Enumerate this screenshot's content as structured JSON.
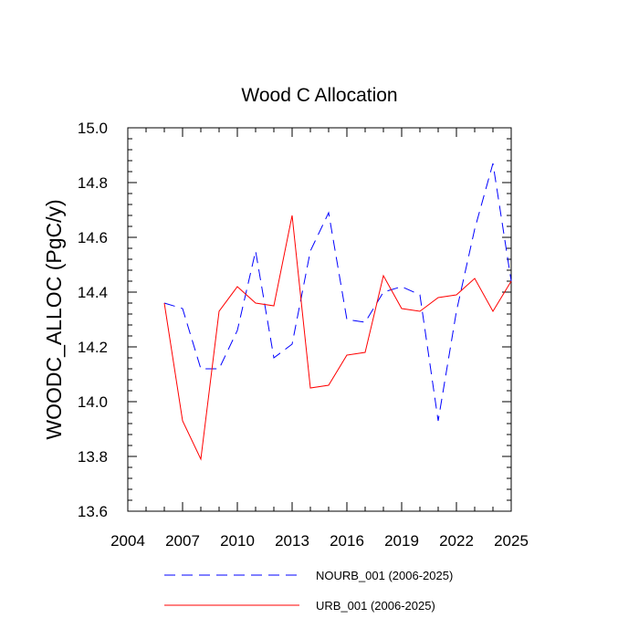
{
  "chart_data": {
    "type": "line",
    "title": "Wood C Allocation",
    "xlabel": "",
    "ylabel": "WOODC_ALLOC  (PgC/y)",
    "xlim": [
      2004,
      2025
    ],
    "ylim": [
      13.6,
      15.0
    ],
    "xticks": [
      2004,
      2007,
      2010,
      2013,
      2016,
      2019,
      2022,
      2025
    ],
    "yticks": [
      13.6,
      13.8,
      14.0,
      14.2,
      14.4,
      14.6,
      14.8,
      15.0
    ],
    "x": [
      2006,
      2007,
      2008,
      2009,
      2010,
      2011,
      2012,
      2013,
      2014,
      2015,
      2016,
      2017,
      2018,
      2019,
      2020,
      2021,
      2022,
      2023,
      2024,
      2025
    ],
    "series": [
      {
        "name": "NOURB_001 (2006-2025)",
        "color": "#0000ff",
        "dash": "dashed",
        "values": [
          14.36,
          14.34,
          14.12,
          14.12,
          14.26,
          14.55,
          14.16,
          14.21,
          14.55,
          14.69,
          14.3,
          14.29,
          14.4,
          14.42,
          14.39,
          13.93,
          14.33,
          14.63,
          14.87,
          14.44
        ]
      },
      {
        "name": "URB_001 (2006-2025)",
        "color": "#ff0000",
        "dash": "solid",
        "values": [
          14.36,
          13.93,
          13.79,
          14.33,
          14.42,
          14.36,
          14.35,
          14.68,
          14.05,
          14.06,
          14.17,
          14.18,
          14.46,
          14.34,
          14.33,
          14.38,
          14.39,
          14.45,
          14.33,
          14.44
        ]
      }
    ],
    "legend_position": "bottom"
  }
}
